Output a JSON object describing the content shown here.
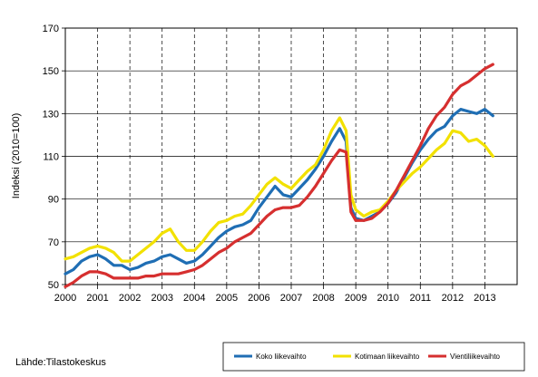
{
  "chart_data": {
    "type": "line",
    "ylabel": "Indeksi (2010=100)",
    "ylim": [
      50,
      170
    ],
    "yticks": [
      "50",
      "70",
      "90",
      "110",
      "130",
      "150",
      "170"
    ],
    "xlim": [
      2000,
      2014
    ],
    "xticks": [
      "2000",
      "2001",
      "2002",
      "2003",
      "2004",
      "2005",
      "2006",
      "2007",
      "2008",
      "2009",
      "2010",
      "2011",
      "2012",
      "2013"
    ],
    "grid": "dashed vertical at each year, solid horizontal",
    "legend_position": "bottom-right",
    "source": "Lähde:Tilastokeskus",
    "series": [
      {
        "name": "Koko liikevaihto",
        "color": "#1f6eb4",
        "points": [
          [
            2000.0,
            55
          ],
          [
            2000.25,
            57
          ],
          [
            2000.5,
            61
          ],
          [
            2000.75,
            63
          ],
          [
            2001.0,
            64
          ],
          [
            2001.25,
            62
          ],
          [
            2001.5,
            59
          ],
          [
            2001.75,
            59
          ],
          [
            2002.0,
            57
          ],
          [
            2002.25,
            58
          ],
          [
            2002.5,
            60
          ],
          [
            2002.75,
            61
          ],
          [
            2003.0,
            63
          ],
          [
            2003.25,
            64
          ],
          [
            2003.5,
            62
          ],
          [
            2003.75,
            60
          ],
          [
            2004.0,
            61
          ],
          [
            2004.25,
            64
          ],
          [
            2004.5,
            68
          ],
          [
            2004.75,
            72
          ],
          [
            2005.0,
            75
          ],
          [
            2005.25,
            77
          ],
          [
            2005.5,
            78
          ],
          [
            2005.75,
            80
          ],
          [
            2006.0,
            86
          ],
          [
            2006.25,
            91
          ],
          [
            2006.5,
            96
          ],
          [
            2006.75,
            92
          ],
          [
            2007.0,
            91
          ],
          [
            2007.25,
            95
          ],
          [
            2007.5,
            99
          ],
          [
            2007.75,
            104
          ],
          [
            2008.0,
            110
          ],
          [
            2008.25,
            117
          ],
          [
            2008.5,
            123
          ],
          [
            2008.7,
            117
          ],
          [
            2008.85,
            86
          ],
          [
            2009.0,
            81
          ],
          [
            2009.25,
            80
          ],
          [
            2009.5,
            82
          ],
          [
            2009.75,
            84
          ],
          [
            2010.0,
            88
          ],
          [
            2010.25,
            93
          ],
          [
            2010.5,
            100
          ],
          [
            2010.75,
            107
          ],
          [
            2011.0,
            113
          ],
          [
            2011.25,
            118
          ],
          [
            2011.5,
            122
          ],
          [
            2011.75,
            124
          ],
          [
            2012.0,
            129
          ],
          [
            2012.25,
            132
          ],
          [
            2012.5,
            131
          ],
          [
            2012.75,
            130
          ],
          [
            2013.0,
            132
          ],
          [
            2013.25,
            129
          ]
        ]
      },
      {
        "name": "Kotimaan liikevaihto",
        "color": "#f2e100",
        "points": [
          [
            2000.0,
            62
          ],
          [
            2000.25,
            63
          ],
          [
            2000.5,
            65
          ],
          [
            2000.75,
            67
          ],
          [
            2001.0,
            68
          ],
          [
            2001.25,
            67
          ],
          [
            2001.5,
            65
          ],
          [
            2001.75,
            61
          ],
          [
            2002.0,
            61
          ],
          [
            2002.25,
            64
          ],
          [
            2002.5,
            67
          ],
          [
            2002.75,
            70
          ],
          [
            2003.0,
            74
          ],
          [
            2003.25,
            76
          ],
          [
            2003.5,
            70
          ],
          [
            2003.75,
            66
          ],
          [
            2004.0,
            66
          ],
          [
            2004.25,
            70
          ],
          [
            2004.5,
            75
          ],
          [
            2004.75,
            79
          ],
          [
            2005.0,
            80
          ],
          [
            2005.25,
            82
          ],
          [
            2005.5,
            83
          ],
          [
            2005.75,
            87
          ],
          [
            2006.0,
            92
          ],
          [
            2006.25,
            97
          ],
          [
            2006.5,
            100
          ],
          [
            2006.75,
            97
          ],
          [
            2007.0,
            95
          ],
          [
            2007.25,
            99
          ],
          [
            2007.5,
            103
          ],
          [
            2007.75,
            106
          ],
          [
            2008.0,
            113
          ],
          [
            2008.25,
            122
          ],
          [
            2008.5,
            128
          ],
          [
            2008.7,
            122
          ],
          [
            2008.85,
            92
          ],
          [
            2009.0,
            85
          ],
          [
            2009.25,
            82
          ],
          [
            2009.5,
            84
          ],
          [
            2009.75,
            85
          ],
          [
            2010.0,
            89
          ],
          [
            2010.25,
            94
          ],
          [
            2010.5,
            98
          ],
          [
            2010.75,
            102
          ],
          [
            2011.0,
            105
          ],
          [
            2011.25,
            109
          ],
          [
            2011.5,
            113
          ],
          [
            2011.75,
            116
          ],
          [
            2012.0,
            122
          ],
          [
            2012.25,
            121
          ],
          [
            2012.5,
            117
          ],
          [
            2012.75,
            118
          ],
          [
            2013.0,
            115
          ],
          [
            2013.25,
            110
          ]
        ]
      },
      {
        "name": "Vientiliikevaihto",
        "color": "#d62f2f",
        "points": [
          [
            2000.0,
            49
          ],
          [
            2000.25,
            51
          ],
          [
            2000.5,
            54
          ],
          [
            2000.75,
            56
          ],
          [
            2001.0,
            56
          ],
          [
            2001.25,
            55
          ],
          [
            2001.5,
            53
          ],
          [
            2001.75,
            53
          ],
          [
            2002.0,
            53
          ],
          [
            2002.25,
            53
          ],
          [
            2002.5,
            54
          ],
          [
            2002.75,
            54
          ],
          [
            2003.0,
            55
          ],
          [
            2003.25,
            55
          ],
          [
            2003.5,
            55
          ],
          [
            2003.75,
            56
          ],
          [
            2004.0,
            57
          ],
          [
            2004.25,
            59
          ],
          [
            2004.5,
            62
          ],
          [
            2004.75,
            65
          ],
          [
            2005.0,
            67
          ],
          [
            2005.25,
            70
          ],
          [
            2005.5,
            72
          ],
          [
            2005.75,
            74
          ],
          [
            2006.0,
            78
          ],
          [
            2006.25,
            82
          ],
          [
            2006.5,
            85
          ],
          [
            2006.75,
            86
          ],
          [
            2007.0,
            86
          ],
          [
            2007.25,
            87
          ],
          [
            2007.5,
            91
          ],
          [
            2007.75,
            96
          ],
          [
            2008.0,
            102
          ],
          [
            2008.25,
            108
          ],
          [
            2008.5,
            113
          ],
          [
            2008.7,
            112
          ],
          [
            2008.85,
            84
          ],
          [
            2009.0,
            80
          ],
          [
            2009.25,
            80
          ],
          [
            2009.5,
            81
          ],
          [
            2009.75,
            84
          ],
          [
            2010.0,
            88
          ],
          [
            2010.25,
            94
          ],
          [
            2010.5,
            101
          ],
          [
            2010.75,
            108
          ],
          [
            2011.0,
            115
          ],
          [
            2011.25,
            123
          ],
          [
            2011.5,
            129
          ],
          [
            2011.75,
            133
          ],
          [
            2012.0,
            139
          ],
          [
            2012.25,
            143
          ],
          [
            2012.5,
            145
          ],
          [
            2012.75,
            148
          ],
          [
            2013.0,
            151
          ],
          [
            2013.25,
            153
          ]
        ]
      }
    ]
  }
}
